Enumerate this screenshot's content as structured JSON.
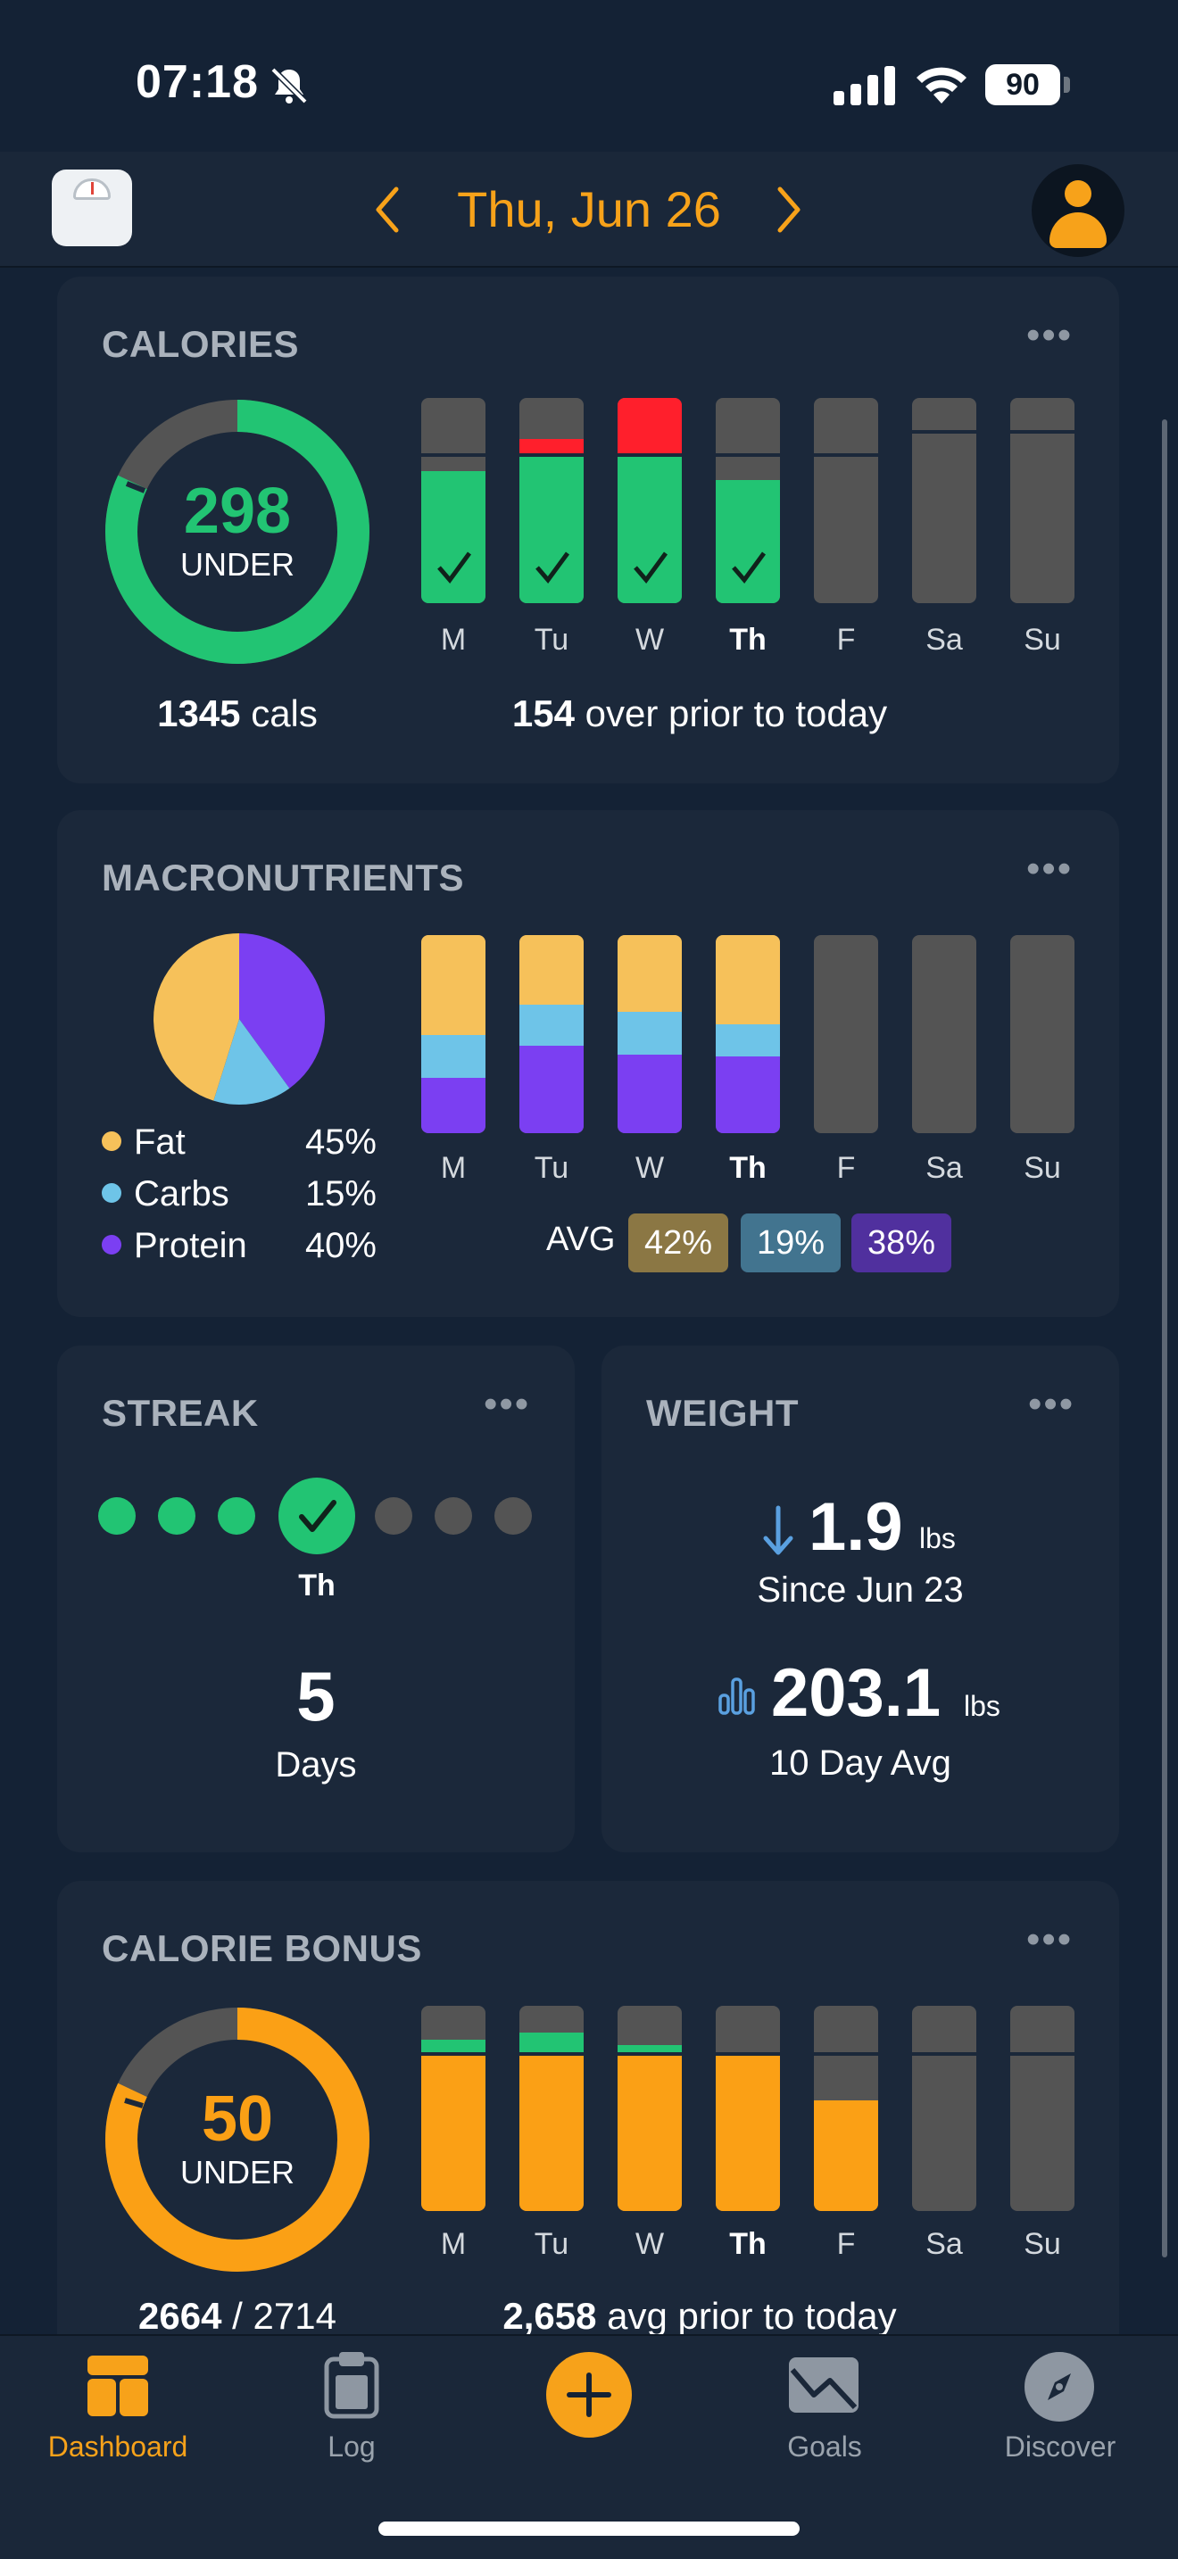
{
  "status_bar": {
    "time": "07:18",
    "battery": "90"
  },
  "header": {
    "date": "Thu, Jun 26"
  },
  "calories": {
    "title": "CALORIES",
    "ring_value": "298",
    "ring_label": "UNDER",
    "consumed": "1345",
    "consumed_unit": "cals",
    "summary_value": "154",
    "summary_text": "over prior to today",
    "days": [
      "M",
      "Tu",
      "W",
      "Th",
      "F",
      "Sa",
      "Su"
    ],
    "today_index": 3,
    "ring_fraction_green": 0.82
  },
  "macros": {
    "title": "MACRONUTRIENTS",
    "legend": [
      {
        "name": "Fat",
        "pct": "45%",
        "color": "#f6c15a"
      },
      {
        "name": "Carbs",
        "pct": "15%",
        "color": "#6ec4e8"
      },
      {
        "name": "Protein",
        "pct": "40%",
        "color": "#7b3ff2"
      }
    ],
    "avg_label": "AVG",
    "avg": {
      "fat": "42%",
      "carbs": "19%",
      "protein": "38%"
    },
    "days": [
      "M",
      "Tu",
      "W",
      "Th",
      "F",
      "Sa",
      "Su"
    ]
  },
  "streak": {
    "title": "STREAK",
    "today": "Th",
    "count": "5",
    "unit": "Days"
  },
  "weight": {
    "title": "WEIGHT",
    "change": "1.9",
    "change_unit": "lbs",
    "since": "Since Jun 23",
    "avg": "203.1",
    "avg_unit": "lbs",
    "avg_label": "10 Day Avg"
  },
  "bonus": {
    "title": "CALORIE BONUS",
    "ring_value": "50",
    "ring_label": "UNDER",
    "used": "2664",
    "total": "/ 2714",
    "summary_value": "2,658",
    "summary_text": "avg prior to today",
    "days": [
      "M",
      "Tu",
      "W",
      "Th",
      "F",
      "Sa",
      "Su"
    ]
  },
  "tabs": [
    {
      "label": "Dashboard",
      "active": true
    },
    {
      "label": "Log",
      "active": false
    },
    {
      "label": "Goals",
      "active": false
    },
    {
      "label": "Discover",
      "active": false
    }
  ],
  "colors": {
    "accent": "#f7a21a",
    "green": "#22c473",
    "red": "#ff1f2c",
    "bar_gray": "#545454",
    "card": "#1b283a",
    "bg": "#142235"
  }
}
